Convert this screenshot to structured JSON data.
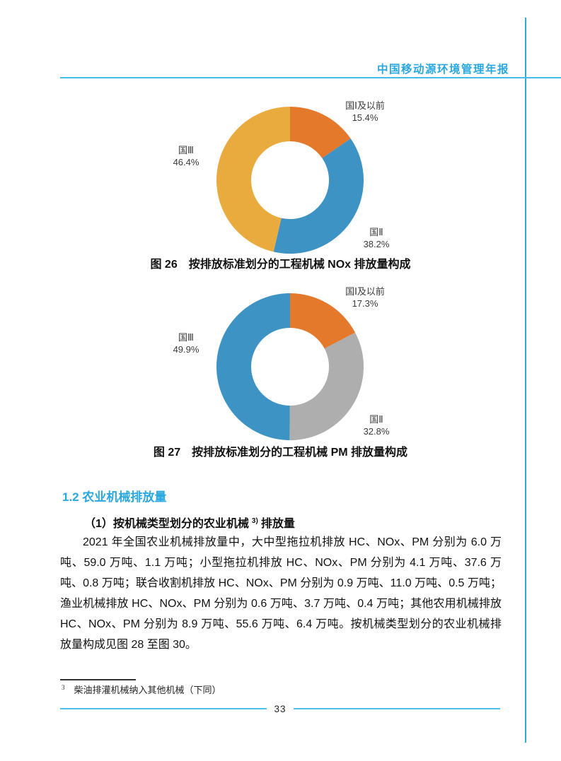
{
  "page": {
    "header_title": "中国移动源环境管理年报",
    "page_number": "33",
    "accent_blue": "#29a7df",
    "rule_blue": "#45bce8"
  },
  "chart_data": [
    {
      "type": "pie",
      "donut": true,
      "title": "图 26　按排放标准划分的工程机械 NOx 排放量构成",
      "legend_position": "callout-labels",
      "start_angle": "12-oclock-clockwise",
      "segments": [
        {
          "label": "国Ⅰ及以前",
          "value": 15.4,
          "display": "15.4%",
          "color": "#e5792b"
        },
        {
          "label": "国Ⅱ",
          "value": 38.2,
          "display": "38.2%",
          "color": "#3e93c5"
        },
        {
          "label": "国Ⅲ",
          "value": 46.4,
          "display": "46.4%",
          "color": "#eaab3e"
        }
      ]
    },
    {
      "type": "pie",
      "donut": true,
      "title": "图 27　按排放标准划分的工程机械 PM 排放量构成",
      "legend_position": "callout-labels",
      "start_angle": "12-oclock-clockwise",
      "segments": [
        {
          "label": "国Ⅰ及以前",
          "value": 17.3,
          "display": "17.3%",
          "color": "#e5792b"
        },
        {
          "label": "国Ⅱ",
          "value": 32.8,
          "display": "32.8%",
          "color": "#aeaeae"
        },
        {
          "label": "国Ⅲ",
          "value": 49.9,
          "display": "49.9%",
          "color": "#3e93c5"
        }
      ]
    }
  ],
  "section": {
    "heading": "1.2 农业机械排放量",
    "para_bold_prefix": "（1）按机械类型划分的农业机械",
    "para_bold_sup": "3)",
    "para_bold_suffix": "排放量",
    "body": "2021 年全国农业机械排放量中，大中型拖拉机排放 HC、NOx、PM 分别为 6.0 万吨、59.0 万吨、1.1 万吨；小型拖拉机排放 HC、NOx、PM 分别为 4.1 万吨、37.6 万吨、0.8 万吨；联合收割机排放 HC、NOx、PM 分别为 0.9 万吨、11.0 万吨、0.5 万吨；渔业机械排放 HC、NOx、PM 分别为 0.6 万吨、3.7 万吨、0.4 万吨；其他农用机械排放 HC、NOx、PM 分别为 8.9 万吨、55.6 万吨、6.4 万吨。按机械类型划分的农业机械排放量构成见图 28 至图 30。"
  },
  "footnote": {
    "marker": "3",
    "text": "柴油排灌机械纳入其他机械（下同）"
  }
}
